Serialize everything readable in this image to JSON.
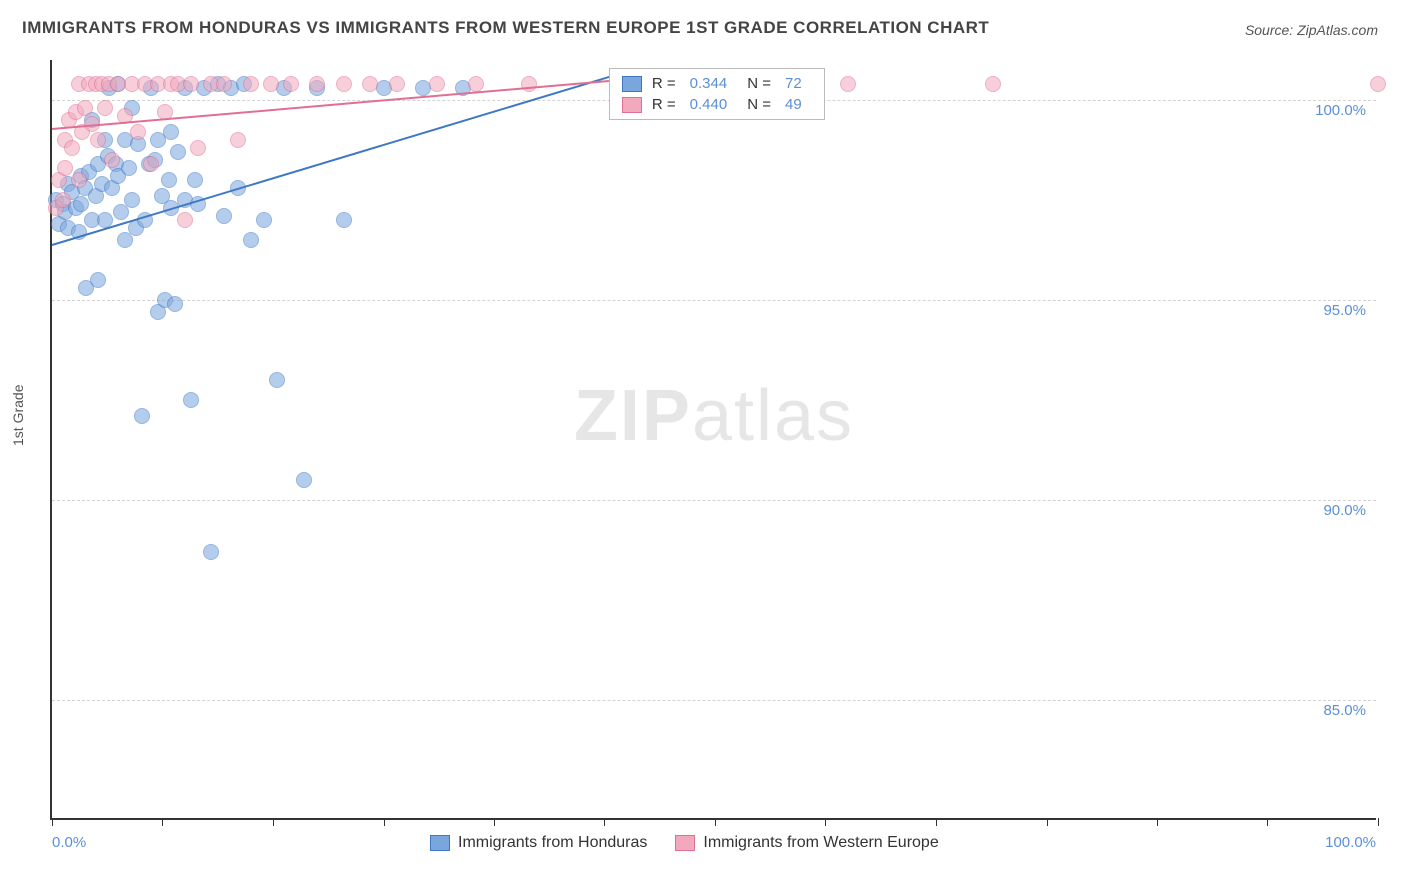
{
  "title": "IMMIGRANTS FROM HONDURAS VS IMMIGRANTS FROM WESTERN EUROPE 1ST GRADE CORRELATION CHART",
  "source_label": "Source: ZipAtlas.com",
  "watermark_a": "ZIP",
  "watermark_b": "atlas",
  "y_axis_title": "1st Grade",
  "chart": {
    "type": "scatter",
    "xlim": [
      0,
      100
    ],
    "ylim": [
      82,
      101
    ],
    "x_ticks": [
      0,
      8.33,
      16.66,
      25,
      33.33,
      41.66,
      50,
      58.33,
      66.66,
      75,
      83.33,
      91.66,
      100
    ],
    "x_labels": [
      {
        "v": 0,
        "t": "0.0%"
      },
      {
        "v": 100,
        "t": "100.0%"
      }
    ],
    "y_gridlines": [
      85,
      90,
      95,
      100
    ],
    "y_labels": [
      {
        "v": 85,
        "t": "85.0%"
      },
      {
        "v": 90,
        "t": "90.0%"
      },
      {
        "v": 95,
        "t": "95.0%"
      },
      {
        "v": 100,
        "t": "100.0%"
      }
    ],
    "grid_color": "#d3d3d3",
    "background_color": "#ffffff",
    "marker_radius": 8,
    "marker_opacity": 0.55,
    "series": [
      {
        "name": "Immigrants from Honduras",
        "color_fill": "#7aa6de",
        "color_stroke": "#3f78c3",
        "R": "0.344",
        "N": "72",
        "trend": {
          "x1": 0,
          "y1": 96.4,
          "x2": 42,
          "y2": 100.6
        },
        "points": [
          [
            0.3,
            97.5
          ],
          [
            0.5,
            96.9
          ],
          [
            0.8,
            97.4
          ],
          [
            1.0,
            97.2
          ],
          [
            1.2,
            96.8
          ],
          [
            1.2,
            97.9
          ],
          [
            1.5,
            97.7
          ],
          [
            1.8,
            97.3
          ],
          [
            2.0,
            96.7
          ],
          [
            2.2,
            98.1
          ],
          [
            2.2,
            97.4
          ],
          [
            2.5,
            97.8
          ],
          [
            2.6,
            95.3
          ],
          [
            2.8,
            98.2
          ],
          [
            3.0,
            97.0
          ],
          [
            3.0,
            99.5
          ],
          [
            3.3,
            97.6
          ],
          [
            3.5,
            95.5
          ],
          [
            3.5,
            98.4
          ],
          [
            3.8,
            97.9
          ],
          [
            4.0,
            99.0
          ],
          [
            4.0,
            97.0
          ],
          [
            4.2,
            98.6
          ],
          [
            4.3,
            100.3
          ],
          [
            4.5,
            97.8
          ],
          [
            4.8,
            98.4
          ],
          [
            5.0,
            98.1
          ],
          [
            5.0,
            100.4
          ],
          [
            5.2,
            97.2
          ],
          [
            5.5,
            99.0
          ],
          [
            5.5,
            96.5
          ],
          [
            5.8,
            98.3
          ],
          [
            6.0,
            99.8
          ],
          [
            6.0,
            97.5
          ],
          [
            6.3,
            96.8
          ],
          [
            6.5,
            98.9
          ],
          [
            6.8,
            92.1
          ],
          [
            7.0,
            97.0
          ],
          [
            7.3,
            98.4
          ],
          [
            7.5,
            100.3
          ],
          [
            7.8,
            98.5
          ],
          [
            8.0,
            94.7
          ],
          [
            8.0,
            99.0
          ],
          [
            8.3,
            97.6
          ],
          [
            8.5,
            95.0
          ],
          [
            8.8,
            98.0
          ],
          [
            9.0,
            99.2
          ],
          [
            9.0,
            97.3
          ],
          [
            9.3,
            94.9
          ],
          [
            9.5,
            98.7
          ],
          [
            10.0,
            100.3
          ],
          [
            10.0,
            97.5
          ],
          [
            10.5,
            92.5
          ],
          [
            10.8,
            98.0
          ],
          [
            11.0,
            97.4
          ],
          [
            11.5,
            100.3
          ],
          [
            12.0,
            88.7
          ],
          [
            12.5,
            100.4
          ],
          [
            13.0,
            97.1
          ],
          [
            13.5,
            100.3
          ],
          [
            14.0,
            97.8
          ],
          [
            14.5,
            100.4
          ],
          [
            15.0,
            96.5
          ],
          [
            16.0,
            97.0
          ],
          [
            17.0,
            93.0
          ],
          [
            17.5,
            100.3
          ],
          [
            19.0,
            90.5
          ],
          [
            20.0,
            100.3
          ],
          [
            22.0,
            97.0
          ],
          [
            25.0,
            100.3
          ],
          [
            28.0,
            100.3
          ],
          [
            31.0,
            100.3
          ]
        ]
      },
      {
        "name": "Immigrants from Western Europe",
        "color_fill": "#f2a9bd",
        "color_stroke": "#e06f92",
        "R": "0.440",
        "N": "49",
        "trend": {
          "x1": 0,
          "y1": 99.3,
          "x2": 42,
          "y2": 100.5
        },
        "points": [
          [
            0.3,
            97.3
          ],
          [
            0.5,
            98.0
          ],
          [
            0.8,
            97.5
          ],
          [
            1.0,
            99.0
          ],
          [
            1.0,
            98.3
          ],
          [
            1.3,
            99.5
          ],
          [
            1.5,
            98.8
          ],
          [
            1.8,
            99.7
          ],
          [
            2.0,
            98.0
          ],
          [
            2.0,
            100.4
          ],
          [
            2.3,
            99.2
          ],
          [
            2.5,
            99.8
          ],
          [
            2.8,
            100.4
          ],
          [
            3.0,
            99.4
          ],
          [
            3.3,
            100.4
          ],
          [
            3.5,
            99.0
          ],
          [
            3.8,
            100.4
          ],
          [
            4.0,
            99.8
          ],
          [
            4.3,
            100.4
          ],
          [
            4.5,
            98.5
          ],
          [
            5.0,
            100.4
          ],
          [
            5.5,
            99.6
          ],
          [
            6.0,
            100.4
          ],
          [
            6.5,
            99.2
          ],
          [
            7.0,
            100.4
          ],
          [
            7.5,
            98.4
          ],
          [
            8.0,
            100.4
          ],
          [
            8.5,
            99.7
          ],
          [
            9.0,
            100.4
          ],
          [
            9.5,
            100.4
          ],
          [
            10.0,
            97.0
          ],
          [
            10.5,
            100.4
          ],
          [
            11.0,
            98.8
          ],
          [
            12.0,
            100.4
          ],
          [
            13.0,
            100.4
          ],
          [
            14.0,
            99.0
          ],
          [
            15.0,
            100.4
          ],
          [
            16.5,
            100.4
          ],
          [
            18.0,
            100.4
          ],
          [
            20.0,
            100.4
          ],
          [
            22.0,
            100.4
          ],
          [
            24.0,
            100.4
          ],
          [
            26.0,
            100.4
          ],
          [
            29.0,
            100.4
          ],
          [
            32.0,
            100.4
          ],
          [
            36.0,
            100.4
          ],
          [
            60.0,
            100.4
          ],
          [
            71.0,
            100.4
          ],
          [
            100.0,
            100.4
          ]
        ]
      }
    ]
  },
  "legend_top": {
    "rows": [
      {
        "sw": 0,
        "r_label": "R =",
        "n_label": "N ="
      },
      {
        "sw": 1,
        "r_label": "R =",
        "n_label": "N ="
      }
    ]
  },
  "legend_bottom": {
    "items": [
      {
        "sw": 0
      },
      {
        "sw": 1
      }
    ]
  }
}
